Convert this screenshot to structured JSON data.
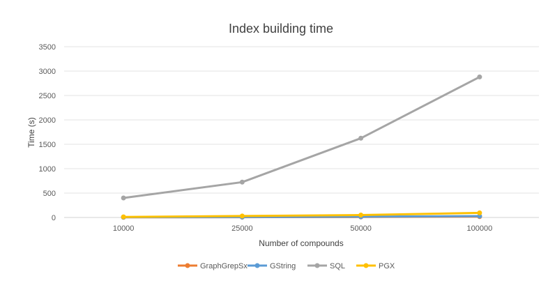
{
  "chart_data": {
    "type": "line",
    "title": "Index building time",
    "xlabel": "Number of compounds",
    "ylabel": "Time (s)",
    "categories": [
      "10000",
      "25000",
      "50000",
      "100000"
    ],
    "ylim": [
      0,
      3500
    ],
    "yticks": [
      0,
      500,
      1000,
      1500,
      2000,
      2500,
      3000,
      3500
    ],
    "grid": true,
    "legend_position": "bottom",
    "series": [
      {
        "name": "GraphGrepSx",
        "color": "#ED7D31",
        "values": [
          3,
          6,
          10,
          18
        ]
      },
      {
        "name": "GString",
        "color": "#5B9BD5",
        "values": [
          5,
          9,
          15,
          28
        ]
      },
      {
        "name": "SQL",
        "color": "#A5A5A5",
        "values": [
          400,
          725,
          1625,
          2880
        ]
      },
      {
        "name": "PGX",
        "color": "#FFC000",
        "values": [
          12,
          30,
          50,
          95
        ]
      }
    ]
  }
}
